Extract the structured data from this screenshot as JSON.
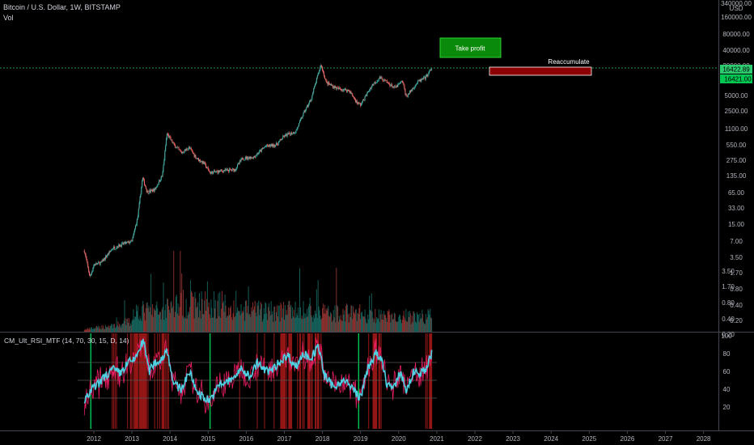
{
  "header": {
    "title": "Bitcoin / U.S. Dollar, 1W, BITSTAMP",
    "vol_label": "Vol",
    "currency": "USD"
  },
  "colors": {
    "background": "#000000",
    "up_candle": "#26a69a",
    "down_candle": "#ef5350",
    "rsi_line": "#4dd0e1",
    "rsi_fast_line": "#e91e63",
    "take_profit_fill": "#0a8a0a",
    "reaccumulate_fill": "#8b0000",
    "price_line": "#2ecc71"
  },
  "chart_data": [
    {
      "type": "line",
      "name": "price",
      "y_scale": "log",
      "x_ticks": [
        "2012",
        "2013",
        "2014",
        "2015",
        "2016",
        "2017",
        "2018",
        "2019",
        "2020",
        "2021",
        "2022",
        "2023",
        "2024",
        "2025",
        "2026",
        "2027",
        "2028"
      ],
      "y_ticks": [
        "340000.00",
        "160000.00",
        "80000.00",
        "40000.00",
        "20000.00",
        "10000.00",
        "5000.00",
        "2500.00",
        "1100.00",
        "550.00",
        "275.00",
        "135.00",
        "65.00",
        "33.00",
        "15.00",
        "7.00",
        "3.50",
        "1.70",
        "0.80",
        "0.40",
        "0.20"
      ],
      "price_labels": [
        "16422.89",
        "16421.00"
      ],
      "x": [
        2011.75,
        2011.9,
        2012.0,
        2012.2,
        2012.5,
        2012.8,
        2013.0,
        2013.15,
        2013.28,
        2013.4,
        2013.6,
        2013.8,
        2013.92,
        2014.1,
        2014.3,
        2014.5,
        2014.7,
        2014.9,
        2015.05,
        2015.4,
        2015.7,
        2015.9,
        2016.2,
        2016.5,
        2016.8,
        2017.0,
        2017.3,
        2017.5,
        2017.7,
        2017.96,
        2018.1,
        2018.4,
        2018.7,
        2018.9,
        2019.0,
        2019.3,
        2019.5,
        2019.7,
        2019.9,
        2020.1,
        2020.2,
        2020.5,
        2020.7,
        2020.88
      ],
      "y": [
        9,
        3,
        5,
        5.5,
        10,
        12,
        13,
        35,
        180,
        100,
        110,
        200,
        1100,
        700,
        500,
        620,
        400,
        320,
        220,
        240,
        250,
        400,
        420,
        650,
        700,
        1000,
        1200,
        2500,
        4500,
        19000,
        9000,
        7000,
        6500,
        4000,
        3600,
        8000,
        11000,
        9000,
        7200,
        9500,
        5000,
        9200,
        11000,
        16400
      ]
    },
    {
      "type": "bar",
      "name": "volume",
      "y_ticks": [
        "3.50",
        "1.70",
        "0.80",
        "0.40",
        "0.20"
      ]
    },
    {
      "type": "line",
      "name": "rsi",
      "label": "CM_Ult_RSI_MTF (14, 70, 30, 15, D, 14)",
      "y_ticks": [
        "100",
        "80",
        "60",
        "40",
        "20"
      ],
      "ylim": [
        0,
        100
      ],
      "overbought": 70,
      "oversold": 30,
      "x": [
        2011.75,
        2011.95,
        2012.1,
        2012.3,
        2012.5,
        2012.7,
        2012.9,
        2013.05,
        2013.2,
        2013.3,
        2013.45,
        2013.6,
        2013.75,
        2013.92,
        2014.1,
        2014.3,
        2014.5,
        2014.7,
        2014.9,
        2015.05,
        2015.3,
        2015.6,
        2015.85,
        2016.1,
        2016.3,
        2016.5,
        2016.7,
        2016.9,
        2017.1,
        2017.3,
        2017.5,
        2017.7,
        2017.9,
        2018.05,
        2018.3,
        2018.5,
        2018.7,
        2018.9,
        2019.0,
        2019.2,
        2019.4,
        2019.55,
        2019.7,
        2019.9,
        2020.05,
        2020.2,
        2020.4,
        2020.6,
        2020.75,
        2020.88
      ],
      "y": [
        25,
        40,
        45,
        55,
        62,
        58,
        70,
        72,
        85,
        95,
        60,
        70,
        72,
        85,
        45,
        40,
        60,
        38,
        30,
        28,
        45,
        50,
        62,
        55,
        70,
        60,
        62,
        72,
        78,
        65,
        80,
        75,
        88,
        55,
        42,
        50,
        45,
        35,
        30,
        65,
        80,
        72,
        45,
        42,
        60,
        38,
        60,
        58,
        65,
        82
      ]
    }
  ],
  "annotations": {
    "take_profit": "Take profit",
    "reaccumulate": "Reaccumulate"
  }
}
